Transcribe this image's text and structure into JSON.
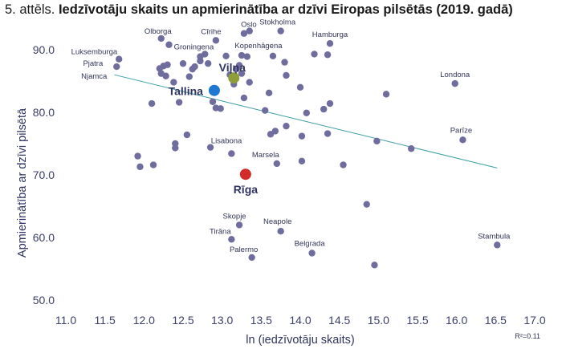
{
  "title": {
    "prefix": "5. attēls.",
    "bold": "Iedzīvotāju skaits un apmierinātība ar dzīvi Eiropas pilsētās (2019. gadā)"
  },
  "chart_data": {
    "type": "scatter",
    "title": "5. attēls. Iedzīvotāju skaits un apmierinātība ar dzīvi Eiropas pilsētās (2019. gadā)",
    "xlabel": "ln (iedzīvotāju skaits)",
    "ylabel": "Apmierinātība ar dzīvi pilsētā",
    "xlim": [
      11.0,
      17.0
    ],
    "ylim": [
      50.0,
      90.0
    ],
    "xticks": [
      "11.0",
      "11.5",
      "12.0",
      "12.5",
      "13.0",
      "13.5",
      "14.0",
      "14.5",
      "15.0",
      "15.5",
      "16.0",
      "16.5",
      "17.0"
    ],
    "yticks": [
      "50.0",
      "60.0",
      "70.0",
      "80.0",
      "90.0"
    ],
    "r2_note": "R²=0.11",
    "trendline": {
      "x": [
        11.62,
        16.52
      ],
      "y": [
        86.0,
        71.1
      ]
    },
    "colors": {
      "points": "#6e6d9e",
      "trend": "#3c9ea3",
      "tallinn": "#1e78d2",
      "vilnius": "#8f9e3b",
      "riga": "#d32a2a"
    },
    "points": [
      {
        "x": 11.68,
        "y": 88.5,
        "label": "Luksemburga"
      },
      {
        "x": 11.65,
        "y": 87.3,
        "label": "Pjatra"
      },
      {
        "x": 11.92,
        "y": 73.0
      },
      {
        "x": 11.95,
        "y": 71.3
      },
      {
        "x": 12.1,
        "y": 81.4
      },
      {
        "x": 12.12,
        "y": 71.6
      },
      {
        "x": 12.22,
        "y": 91.8,
        "label": "Olborga"
      },
      {
        "x": 12.2,
        "y": 87.0
      },
      {
        "x": 12.25,
        "y": 87.4
      },
      {
        "x": 12.22,
        "y": 86.2
      },
      {
        "x": 12.3,
        "y": 87.6
      },
      {
        "x": 12.28,
        "y": 85.8
      },
      {
        "x": 12.32,
        "y": 90.8
      },
      {
        "x": 12.38,
        "y": 84.8
      },
      {
        "x": 12.4,
        "y": 75.0
      },
      {
        "x": 12.4,
        "y": 74.3
      },
      {
        "x": 12.45,
        "y": 81.6
      },
      {
        "x": 12.5,
        "y": 87.8
      },
      {
        "x": 12.55,
        "y": 76.4
      },
      {
        "x": 12.58,
        "y": 85.7
      },
      {
        "x": 12.62,
        "y": 86.9
      },
      {
        "x": 12.65,
        "y": 87.3
      },
      {
        "x": 12.72,
        "y": 88.9,
        "label": "Groningena"
      },
      {
        "x": 12.72,
        "y": 88.2
      },
      {
        "x": 12.78,
        "y": 89.3
      },
      {
        "x": 12.82,
        "y": 87.8
      },
      {
        "x": 12.88,
        "y": 81.7
      },
      {
        "x": 12.85,
        "y": 74.4,
        "label": "Lisabona"
      },
      {
        "x": 12.92,
        "y": 91.5,
        "label": "Cīrihe"
      },
      {
        "x": 12.92,
        "y": 80.7
      },
      {
        "x": 12.98,
        "y": 80.6
      },
      {
        "x": 13.05,
        "y": 89.0
      },
      {
        "x": 13.1,
        "y": 86.0
      },
      {
        "x": 13.12,
        "y": 73.4
      },
      {
        "x": 13.15,
        "y": 84.5
      },
      {
        "x": 13.18,
        "y": 86.9
      },
      {
        "x": 13.22,
        "y": 87.5
      },
      {
        "x": 13.25,
        "y": 89.1
      },
      {
        "x": 13.25,
        "y": 86.2
      },
      {
        "x": 13.28,
        "y": 92.6,
        "label": "Oslo"
      },
      {
        "x": 13.28,
        "y": 82.3
      },
      {
        "x": 13.32,
        "y": 88.9
      },
      {
        "x": 13.35,
        "y": 84.8
      },
      {
        "x": 13.35,
        "y": 93.0
      },
      {
        "x": 13.22,
        "y": 62.0,
        "label": "Skopje"
      },
      {
        "x": 13.12,
        "y": 59.7,
        "label": "Tirāna"
      },
      {
        "x": 13.38,
        "y": 56.8,
        "label": "Palermo"
      },
      {
        "x": 13.55,
        "y": 80.3
      },
      {
        "x": 13.6,
        "y": 83.1
      },
      {
        "x": 13.62,
        "y": 76.5
      },
      {
        "x": 13.65,
        "y": 89.0,
        "label": "Kopenhāgena"
      },
      {
        "x": 13.68,
        "y": 77.0
      },
      {
        "x": 13.7,
        "y": 71.8,
        "label": "Marsela"
      },
      {
        "x": 13.75,
        "y": 93.0,
        "label": "Stokholma"
      },
      {
        "x": 13.75,
        "y": 61.0,
        "label": "Neapole"
      },
      {
        "x": 13.8,
        "y": 88.0
      },
      {
        "x": 13.82,
        "y": 85.9
      },
      {
        "x": 13.82,
        "y": 77.8
      },
      {
        "x": 14.0,
        "y": 84.0
      },
      {
        "x": 14.02,
        "y": 76.2
      },
      {
        "x": 14.02,
        "y": 72.2
      },
      {
        "x": 14.08,
        "y": 79.9
      },
      {
        "x": 14.15,
        "y": 57.5,
        "label": "Belgrada"
      },
      {
        "x": 14.18,
        "y": 89.3
      },
      {
        "x": 14.3,
        "y": 80.5
      },
      {
        "x": 14.35,
        "y": 89.2
      },
      {
        "x": 14.38,
        "y": 81.4
      },
      {
        "x": 14.38,
        "y": 91.0,
        "label": "Hamburga"
      },
      {
        "x": 14.35,
        "y": 76.6
      },
      {
        "x": 14.55,
        "y": 71.6
      },
      {
        "x": 14.85,
        "y": 65.3
      },
      {
        "x": 14.95,
        "y": 55.6
      },
      {
        "x": 14.98,
        "y": 75.4
      },
      {
        "x": 15.1,
        "y": 82.9
      },
      {
        "x": 15.42,
        "y": 74.2
      },
      {
        "x": 15.98,
        "y": 84.6,
        "label": "Londona"
      },
      {
        "x": 16.08,
        "y": 75.6,
        "label": "Parīze"
      },
      {
        "x": 16.52,
        "y": 58.8,
        "label": "Stambula"
      }
    ],
    "highlighted": [
      {
        "x": 13.15,
        "y": 85.5,
        "label": "Viļņa",
        "color": "#8f9e3b"
      },
      {
        "x": 12.9,
        "y": 83.5,
        "label": "Tallina",
        "color": "#1e78d2"
      },
      {
        "x": 13.3,
        "y": 70.1,
        "label": "Rīga",
        "color": "#d32a2a"
      }
    ],
    "small_labels_extra": [
      {
        "label": "Njamca",
        "x": 11.62,
        "y": 85.9
      }
    ]
  }
}
